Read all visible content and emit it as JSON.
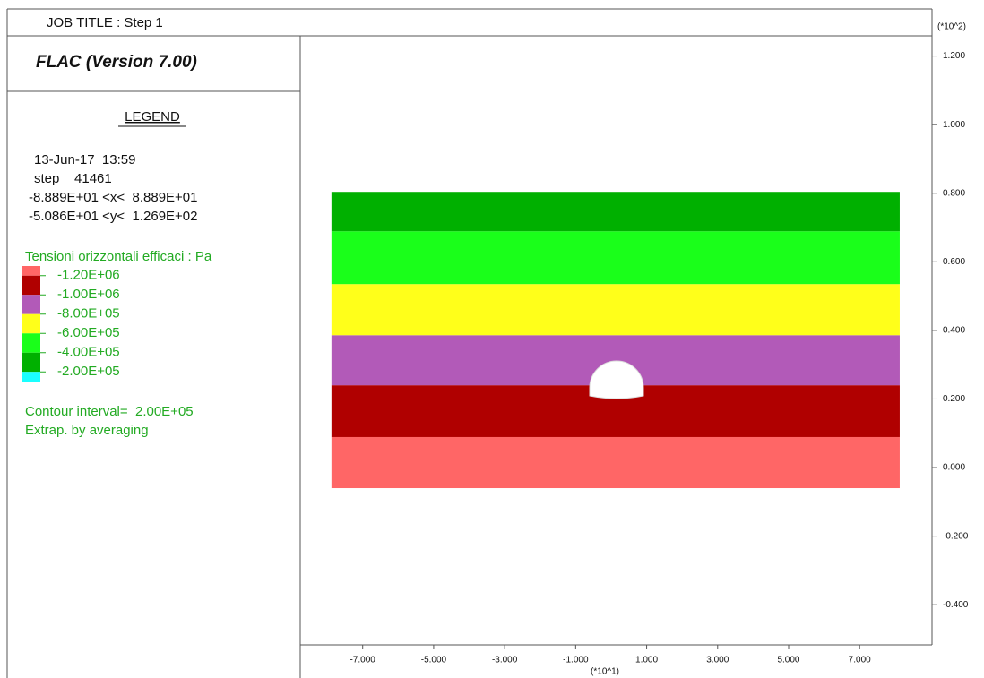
{
  "chart_data": {
    "type": "contour",
    "title": "JOB TITLE : Step 1",
    "subtitle": "FLAC (Version 7.00)",
    "legend_title": "LEGEND",
    "info": [
      "13-Jun-17  13:59",
      "step    41461",
      "-8.889E+01 <x<  8.889E+01",
      "-5.086E+01 <y<  1.269E+02"
    ],
    "legend": {
      "title": "Tensioni orizzontali efficaci : Pa",
      "levels": [
        "-1.20E+06",
        "-1.00E+06",
        "-8.00E+05",
        "-6.00E+05",
        "-4.00E+05",
        "-2.00E+05"
      ],
      "colors": [
        "#ff6666",
        "#b00000",
        "#b25ab8",
        "#ffff1a",
        "#1aff1a",
        "#00b000",
        "#1affff"
      ]
    },
    "notes": [
      "Contour interval=  2.00E+05",
      "Extrap. by averaging"
    ],
    "x_multiplier": "(*10^1)",
    "y_multiplier": "(*10^2)",
    "xlim": [
      -8.76,
      9.04
    ],
    "ylim": [
      -0.517,
      1.259
    ],
    "xticks": [
      {
        "value": -7,
        "label": "-7.000"
      },
      {
        "value": -5,
        "label": "-5.000"
      },
      {
        "value": -3,
        "label": "-3.000"
      },
      {
        "value": -1,
        "label": "-1.000"
      },
      {
        "value": 1,
        "label": "1.000"
      },
      {
        "value": 3,
        "label": "3.000"
      },
      {
        "value": 5,
        "label": "5.000"
      },
      {
        "value": 7,
        "label": "7.000"
      }
    ],
    "yticks": [
      {
        "value": 1.2,
        "label": "1.200"
      },
      {
        "value": 1.0,
        "label": "1.000"
      },
      {
        "value": 0.8,
        "label": "0.800"
      },
      {
        "value": 0.6,
        "label": "0.600"
      },
      {
        "value": 0.4,
        "label": "0.400"
      },
      {
        "value": 0.2,
        "label": "0.200"
      },
      {
        "value": 0,
        "label": "0.000"
      },
      {
        "value": -0.2,
        "label": "-0.200"
      },
      {
        "value": -0.4,
        "label": "-0.400"
      }
    ],
    "model_x": [
      -7.88,
      8.13
    ],
    "bands": [
      {
        "color": "#ff6666",
        "y": [
          -0.06,
          0.089
        ]
      },
      {
        "color": "#b00000",
        "y": [
          0.089,
          0.24
        ]
      },
      {
        "color": "#b25ab8",
        "y": [
          0.24,
          0.386
        ]
      },
      {
        "color": "#ffff1a",
        "y": [
          0.386,
          0.535
        ]
      },
      {
        "color": "#1aff1a",
        "y": [
          0.535,
          0.689
        ]
      },
      {
        "color": "#00b000",
        "y": [
          0.689,
          0.804
        ]
      }
    ]
  }
}
